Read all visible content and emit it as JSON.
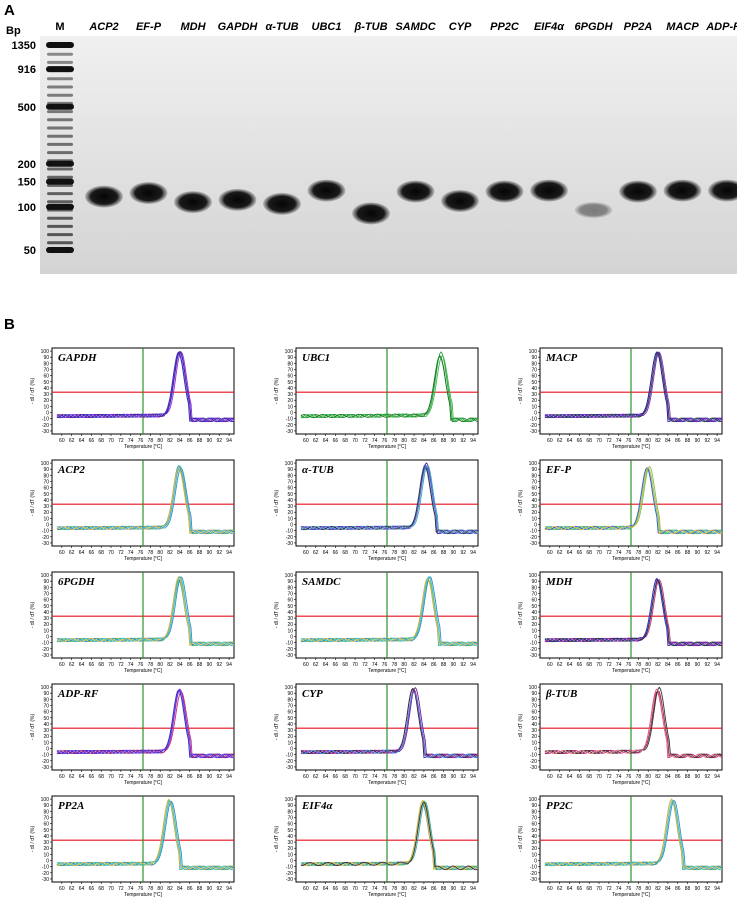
{
  "panel_a": {
    "letter": "A",
    "bp_header": "Bp",
    "marker_lane": "M",
    "ladder": [
      "1350",
      "916",
      "500",
      "200",
      "150",
      "100",
      "50"
    ],
    "lanes": [
      {
        "label": "ACP2",
        "size": 118
      },
      {
        "label": "EF-P",
        "size": 125
      },
      {
        "label": "MDH",
        "size": 108
      },
      {
        "label": "GAPDH",
        "size": 112
      },
      {
        "label": "α-TUB",
        "size": 105
      },
      {
        "label": "UBC1",
        "size": 130
      },
      {
        "label": "β-TUB",
        "size": 90
      },
      {
        "label": "SAMDC",
        "size": 128
      },
      {
        "label": "CYP",
        "size": 110
      },
      {
        "label": "PP2C",
        "size": 128
      },
      {
        "label": "EIF4α",
        "size": 130
      },
      {
        "label": "6PGDH",
        "size": 95
      },
      {
        "label": "PP2A",
        "size": 128
      },
      {
        "label": "MACP",
        "size": 130
      },
      {
        "label": "ADP-RF",
        "size": 130
      }
    ]
  },
  "panel_b": {
    "letter": "B",
    "xlabel": "Temperature [°C]",
    "ylabel": "- dI / dT (%)",
    "x_ticks": [
      "60",
      "62",
      "64",
      "66",
      "68",
      "70",
      "72",
      "74",
      "76",
      "78",
      "80",
      "82",
      "84",
      "86",
      "88",
      "90",
      "92",
      "94"
    ],
    "y_ticks": [
      "100",
      "90",
      "80",
      "70",
      "60",
      "50",
      "40",
      "30",
      "20",
      "10",
      "0",
      "-10",
      "-20",
      "-30"
    ],
    "threshold_level": 33,
    "threshold_temp": 76.5,
    "colors": {
      "threshold_h": "#e8111b",
      "threshold_v": "#1a8a1a"
    },
    "plots": [
      {
        "label": "GAPDH",
        "peak": 84,
        "colors": [
          "#3b2aa8",
          "#6a1fa0",
          "#8a2be2",
          "#2f3bd0",
          "#5520a0"
        ]
      },
      {
        "label": "UBC1",
        "peak": 87.5,
        "colors": [
          "#1f8a2a",
          "#2aa040",
          "#3bb84a",
          "#167a20"
        ]
      },
      {
        "label": "MACP",
        "peak": 82,
        "colors": [
          "#2f3bd0",
          "#6a1fa0",
          "#7b2fc0",
          "#1e2a9a",
          "#444444"
        ]
      },
      {
        "label": "ACP2",
        "peak": 84,
        "colors": [
          "#3aa6a0",
          "#7cc34a",
          "#2a8fd0",
          "#e0b23a",
          "#5ab0c8"
        ]
      },
      {
        "label": "α-TUB",
        "peak": 84.5,
        "colors": [
          "#2f6ad0",
          "#6a1fa0",
          "#3aa6c0",
          "#333333",
          "#5570e0"
        ]
      },
      {
        "label": "EF-P",
        "peak": 80,
        "colors": [
          "#2a9ad0",
          "#4ab8a0",
          "#7cc34a",
          "#2f6ad0",
          "#e0b23a"
        ]
      },
      {
        "label": "6PGDH",
        "peak": 84,
        "colors": [
          "#3aa6a0",
          "#7cc34a",
          "#2a8fd0",
          "#e0b23a",
          "#4ac0c0"
        ]
      },
      {
        "label": "SAMDC",
        "peak": 85,
        "colors": [
          "#3aa6a0",
          "#7cc34a",
          "#2a8fd0",
          "#e0b23a",
          "#4ac0c0"
        ]
      },
      {
        "label": "MDH",
        "peak": 82,
        "colors": [
          "#6a1fa0",
          "#3b2aa8",
          "#c0307a",
          "#2f3bd0",
          "#333333"
        ]
      },
      {
        "label": "ADP-RF",
        "peak": 84,
        "colors": [
          "#3b2aa8",
          "#6a1fa0",
          "#c0307a",
          "#2f3bd0",
          "#8a2be2"
        ]
      },
      {
        "label": "CYP",
        "peak": 82,
        "colors": [
          "#2f3bd0",
          "#c0307a",
          "#6a1fa0",
          "#333333",
          "#5570e0"
        ]
      },
      {
        "label": "β-TUB",
        "peak": 82,
        "colors": [
          "#c0307a",
          "#8a1f50",
          "#333333",
          "#e0607a"
        ]
      },
      {
        "label": "PP2A",
        "peak": 82,
        "colors": [
          "#3aa6a0",
          "#7cc34a",
          "#2a8fd0",
          "#e0b23a",
          "#4ac0c0"
        ]
      },
      {
        "label": "EIF4α",
        "peak": 84,
        "colors": [
          "#2a8fd0",
          "#7cc34a",
          "#3aa6a0",
          "#e0b23a",
          "#333333"
        ]
      },
      {
        "label": "PP2C",
        "peak": 85,
        "colors": [
          "#3aa6a0",
          "#7cc34a",
          "#2a8fd0",
          "#e0b23a",
          "#4ac0c0"
        ]
      }
    ]
  }
}
